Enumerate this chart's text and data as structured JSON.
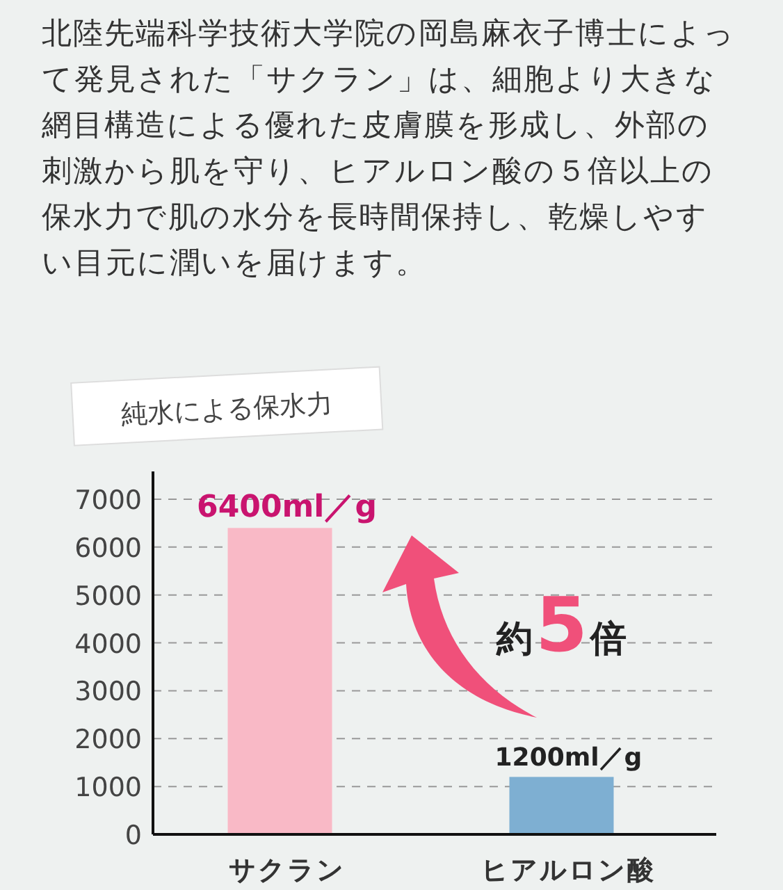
{
  "chart_data": {
    "type": "bar",
    "title": "純水による保水力",
    "annotations": [
      "北陸先端科学技術大学院の岡島麻衣子博士によって発見された「サクラン」は、細胞より大きな網目構造による優れた皮膚膜を形成し、外部の刺激から肌を守り、ヒアルロン酸の５倍以上の保水力で肌の水分を長時間保持し、乾燥しやすい目元に潤いを届けます。",
      "約5倍"
    ],
    "categories": [
      "サクラン",
      "ヒアルロン酸"
    ],
    "values": [
      6400,
      1200
    ],
    "colors": [
      "#f9b9c6",
      "#7eafd2"
    ],
    "value_labels": [
      "6400ml／g",
      "1200ml／g"
    ],
    "ylim": [
      0,
      7000
    ],
    "yticks": [
      0,
      1000,
      2000,
      3000,
      4000,
      5000,
      6000,
      7000
    ],
    "grid": "y"
  }
}
